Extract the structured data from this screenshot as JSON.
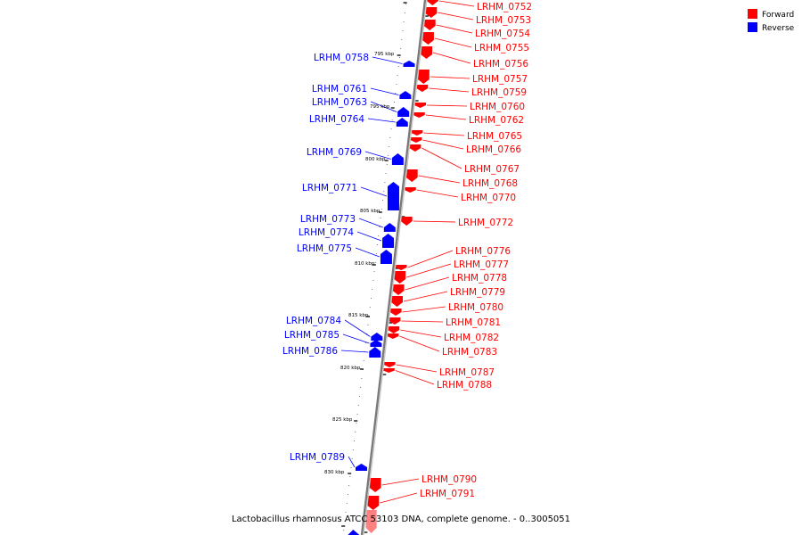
{
  "legend": [
    {
      "label": "Forward",
      "color": "#ff0000"
    },
    {
      "label": "Reverse",
      "color": "#0000ff"
    }
  ],
  "caption": "Lactobacillus rhamnosus ATCC 53103 DNA, complete genome. - 0..3005051",
  "tick_labels": [
    "795 kbp",
    "795 kbp",
    "800 kbp",
    "805 kbp",
    "810 kbp",
    "815 kbp",
    "820 kbp",
    "825 kbp",
    "830 kbp"
  ],
  "forward_genes": [
    "LRHM_0752",
    "LRHM_0753",
    "LRHM_0754",
    "LRHM_0755",
    "LRHM_0756",
    "LRHM_0757",
    "LRHM_0759",
    "LRHM_0760",
    "LRHM_0762",
    "LRHM_0765",
    "LRHM_0766",
    "LRHM_0767",
    "LRHM_0768",
    "LRHM_0770",
    "LRHM_0772",
    "LRHM_0776",
    "LRHM_0777",
    "LRHM_0778",
    "LRHM_0779",
    "LRHM_0780",
    "LRHM_0781",
    "LRHM_0782",
    "LRHM_0783",
    "LRHM_0787",
    "LRHM_0788",
    "LRHM_0790",
    "LRHM_0791"
  ],
  "reverse_genes": [
    "LRHM_0758",
    "LRHM_0761",
    "LRHM_0763",
    "LRHM_0764",
    "LRHM_0769",
    "LRHM_0771",
    "LRHM_0773",
    "LRHM_0774",
    "LRHM_0775",
    "LRHM_0784",
    "LRHM_0785",
    "LRHM_0786",
    "LRHM_0789"
  ],
  "colors": {
    "forward": "#ff0000",
    "reverse": "#0000ff",
    "backbone": "#808080"
  }
}
